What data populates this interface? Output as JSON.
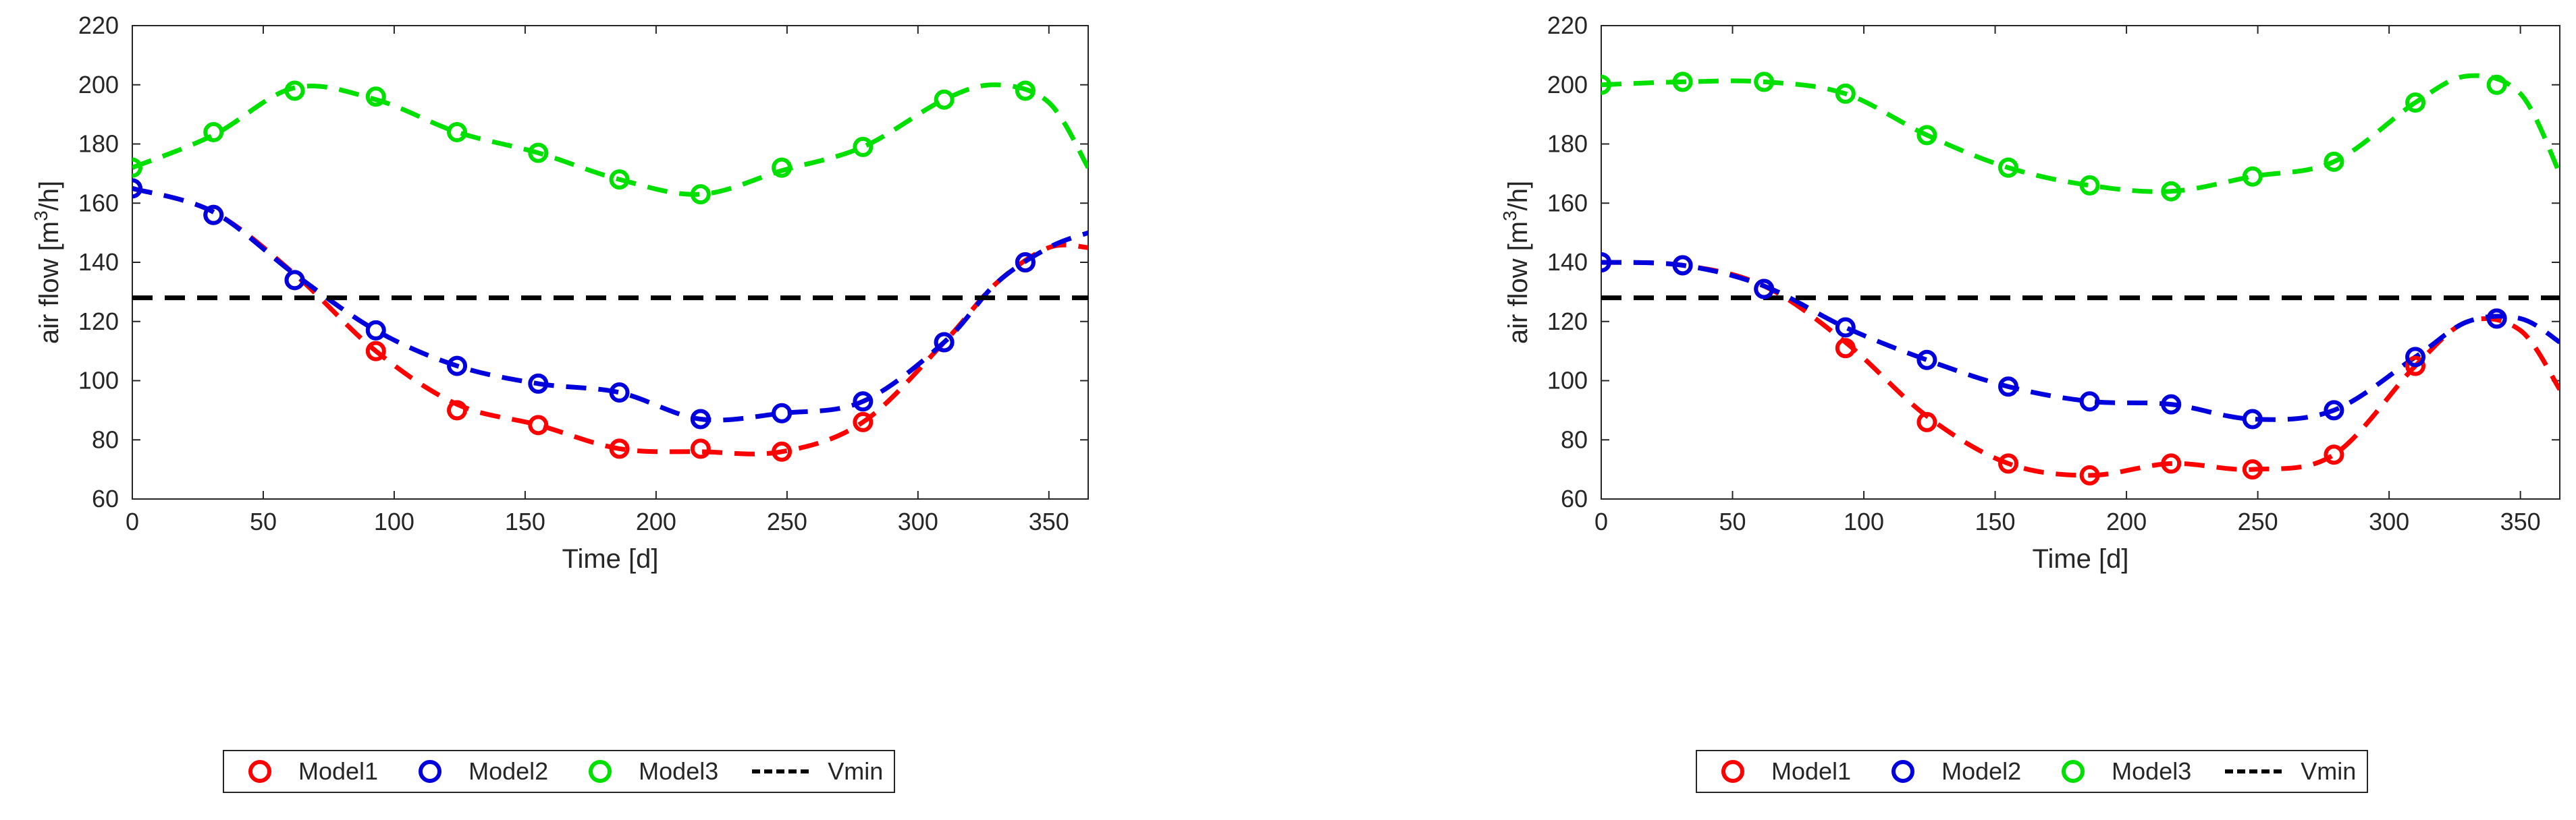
{
  "chart_data": [
    {
      "type": "line",
      "title": "",
      "xlabel": "Time [d]",
      "ylabel_main": "air flow [m",
      "ylabel_sup": "3",
      "ylabel_tail": "/h]",
      "xlim": [
        0,
        365
      ],
      "ylim": [
        60,
        220
      ],
      "xticks": [
        0,
        50,
        100,
        150,
        200,
        250,
        300,
        350
      ],
      "yticks": [
        60,
        80,
        100,
        120,
        140,
        160,
        180,
        200,
        220
      ],
      "grid": false,
      "legend_position": "bottom-center",
      "series": [
        {
          "name": "Model1",
          "color": "#ff0000",
          "points": {
            "x": [
              0,
              31,
              62,
              93,
              124,
              155,
              186,
              217,
              248,
              279,
              310,
              341
            ],
            "y": [
              165,
              156,
              134,
              110,
              90,
              85,
              77,
              77,
              76,
              86,
              113,
              140
            ]
          },
          "curve": {
            "x": [
              0,
              31,
              62,
              93,
              124,
              155,
              186,
              217,
              248,
              279,
              310,
              330,
              350,
              365
            ],
            "y": [
              165,
              157,
              136,
              110,
              92,
              85,
              77,
              76,
              76,
              86,
              113,
              133,
              145,
              145
            ]
          }
        },
        {
          "name": "Model2",
          "color": "#0000dd",
          "points": {
            "x": [
              0,
              31,
              62,
              93,
              124,
              155,
              186,
              217,
              248,
              279,
              310,
              341
            ],
            "y": [
              165,
              156,
              134,
              117,
              105,
              99,
              96,
              87,
              89,
              93,
              113,
              140
            ]
          },
          "curve": {
            "x": [
              0,
              31,
              62,
              93,
              124,
              155,
              186,
              217,
              248,
              279,
              310,
              330,
              350,
              365
            ],
            "y": [
              165,
              157,
              136,
              117,
              105,
              99,
              96,
              87,
              89,
              93,
              113,
              133,
              145,
              150
            ]
          }
        },
        {
          "name": "Model3",
          "color": "#00e000",
          "points": {
            "x": [
              0,
              31,
              62,
              93,
              124,
              155,
              186,
              217,
              248,
              279,
              310,
              341
            ],
            "y": [
              172,
              184,
              198,
              196,
              184,
              177,
              168,
              163,
              172,
              179,
              195,
              198
            ]
          },
          "curve": {
            "x": [
              0,
              31,
              62,
              93,
              124,
              155,
              186,
              217,
              248,
              279,
              310,
              330,
              350,
              365
            ],
            "y": [
              172,
              183,
              199,
              195,
              184,
              177,
              168,
              163,
              171,
              179,
              195,
              200,
              194,
              172
            ]
          }
        },
        {
          "name": "Vmin",
          "color": "#000000",
          "constant": 128
        }
      ]
    },
    {
      "type": "line",
      "title": "",
      "xlabel": "Time [d]",
      "ylabel_main": "air flow [m",
      "ylabel_sup": "3",
      "ylabel_tail": "/h]",
      "xlim": [
        0,
        365
      ],
      "ylim": [
        60,
        220
      ],
      "xticks": [
        0,
        50,
        100,
        150,
        200,
        250,
        300,
        350
      ],
      "yticks": [
        60,
        80,
        100,
        120,
        140,
        160,
        180,
        200,
        220
      ],
      "grid": false,
      "legend_position": "bottom-center",
      "series": [
        {
          "name": "Model1",
          "color": "#ff0000",
          "points": {
            "x": [
              0,
              31,
              62,
              93,
              124,
              155,
              186,
              217,
              248,
              279,
              310,
              341
            ],
            "y": [
              140,
              139,
              131,
              111,
              86,
              72,
              68,
              72,
              70,
              75,
              105,
              121
            ]
          },
          "curve": {
            "x": [
              0,
              31,
              62,
              93,
              124,
              155,
              186,
              217,
              248,
              279,
              310,
              330,
              350,
              365
            ],
            "y": [
              140,
              139,
              132,
              113,
              88,
              72,
              68,
              72,
              70,
              75,
              105,
              120,
              117,
              97
            ]
          }
        },
        {
          "name": "Model2",
          "color": "#0000dd",
          "points": {
            "x": [
              0,
              31,
              62,
              93,
              124,
              155,
              186,
              217,
              248,
              279,
              310,
              341
            ],
            "y": [
              140,
              139,
              131,
              118,
              107,
              98,
              93,
              92,
              87,
              90,
              108,
              121
            ]
          },
          "curve": {
            "x": [
              0,
              31,
              62,
              93,
              124,
              155,
              186,
              217,
              248,
              279,
              310,
              330,
              350,
              365
            ],
            "y": [
              140,
              139,
              132,
              118,
              107,
              98,
              93,
              92,
              87,
              90,
              108,
              120,
              121,
              113
            ]
          }
        },
        {
          "name": "Model3",
          "color": "#00e000",
          "points": {
            "x": [
              0,
              31,
              62,
              93,
              124,
              155,
              186,
              217,
              248,
              279,
              310,
              341
            ],
            "y": [
              200,
              201,
              201,
              197,
              183,
              172,
              166,
              164,
              169,
              174,
              194,
              200
            ]
          },
          "curve": {
            "x": [
              0,
              31,
              62,
              93,
              124,
              155,
              186,
              217,
              248,
              279,
              310,
              330,
              350,
              365
            ],
            "y": [
              200,
              201,
              201,
              197,
              183,
              172,
              166,
              164,
              169,
              174,
              194,
              203,
              197,
              170
            ]
          }
        },
        {
          "name": "Vmin",
          "color": "#000000",
          "constant": 128
        }
      ]
    }
  ]
}
